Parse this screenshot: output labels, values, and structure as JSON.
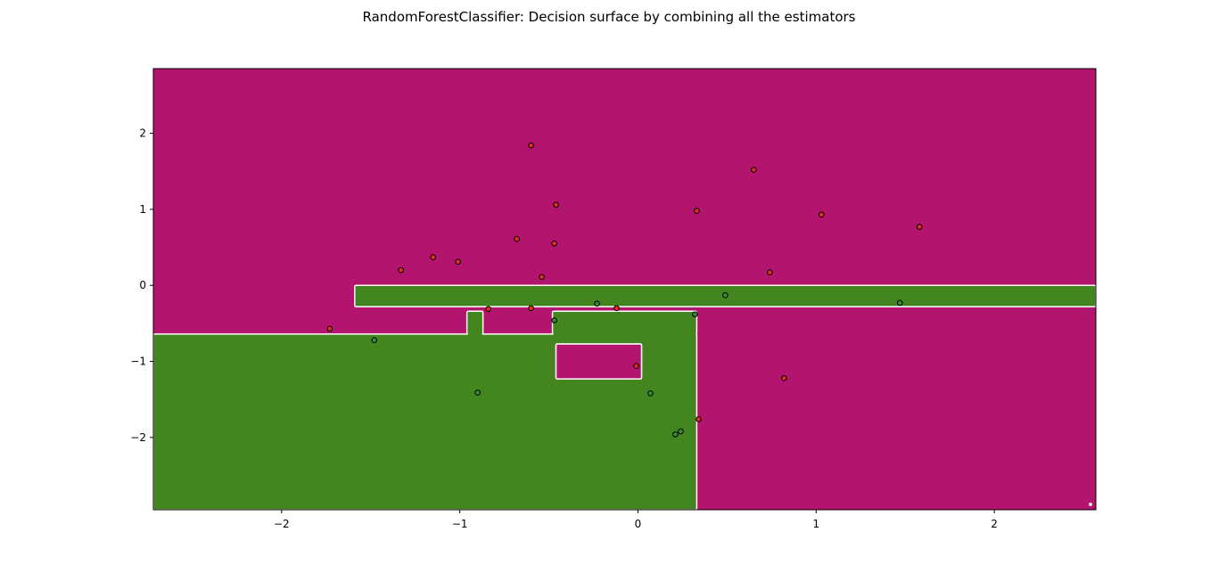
{
  "chart_data": {
    "type": "scatter",
    "title": "RandomForestClassifier: Decision surface by combining all the estimators",
    "xlabel": "",
    "ylabel": "",
    "xlim": [
      -2.72,
      2.57
    ],
    "ylim": [
      -2.95,
      2.85
    ],
    "xticks": [
      -2,
      -1,
      0,
      1,
      2
    ],
    "yticks": [
      2,
      1,
      0,
      -1,
      -2
    ],
    "tick_labels_x": [
      "−2",
      "−1",
      "0",
      "1",
      "2"
    ],
    "tick_labels_y": [
      "2",
      "1",
      "0",
      "−1",
      "−2"
    ],
    "grid": false,
    "colors": {
      "class_0_region": "#b3146d",
      "class_1_region": "#43851f",
      "class_0_point": "#e0301e",
      "class_1_point": "#3a8a40",
      "boundary": "#ffffff",
      "point_edge": "#000000"
    },
    "class_1_regions": [
      {
        "x": [
          -1.59,
          2.57
        ],
        "y": [
          -0.28,
          0.0
        ]
      },
      {
        "x": [
          -2.72,
          0.33
        ],
        "y": [
          -2.95,
          -0.64
        ]
      },
      {
        "x": [
          -0.96,
          -0.87
        ],
        "y": [
          -0.64,
          -0.34
        ]
      },
      {
        "x": [
          -0.48,
          0.33
        ],
        "y": [
          -0.64,
          -0.34
        ]
      }
    ],
    "class_0_regions": [
      {
        "x": [
          -0.46,
          0.02
        ],
        "y": [
          -1.23,
          -0.77
        ]
      }
    ],
    "series": [
      {
        "class": 0,
        "points": [
          [
            -0.6,
            1.84
          ],
          [
            0.65,
            1.52
          ],
          [
            -0.46,
            1.06
          ],
          [
            0.33,
            0.98
          ],
          [
            1.03,
            0.93
          ],
          [
            1.58,
            0.77
          ],
          [
            -0.68,
            0.61
          ],
          [
            -0.47,
            0.55
          ],
          [
            -1.15,
            0.37
          ],
          [
            -1.01,
            0.31
          ],
          [
            -1.33,
            0.2
          ],
          [
            0.74,
            0.17
          ],
          [
            -0.54,
            0.11
          ],
          [
            -0.84,
            -0.31
          ],
          [
            -0.6,
            -0.3
          ],
          [
            -0.12,
            -0.3
          ],
          [
            -1.73,
            -0.57
          ],
          [
            -0.01,
            -1.06
          ],
          [
            0.82,
            -1.22
          ],
          [
            0.34,
            -1.76
          ]
        ]
      },
      {
        "class": 1,
        "points": [
          [
            0.49,
            -0.13
          ],
          [
            -0.23,
            -0.24
          ],
          [
            1.47,
            -0.23
          ],
          [
            0.32,
            -0.38
          ],
          [
            -0.47,
            -0.46
          ],
          [
            -1.48,
            -0.72
          ],
          [
            -0.9,
            -1.41
          ],
          [
            0.07,
            -1.42
          ],
          [
            0.24,
            -1.92
          ],
          [
            0.21,
            -1.96
          ]
        ]
      }
    ]
  }
}
